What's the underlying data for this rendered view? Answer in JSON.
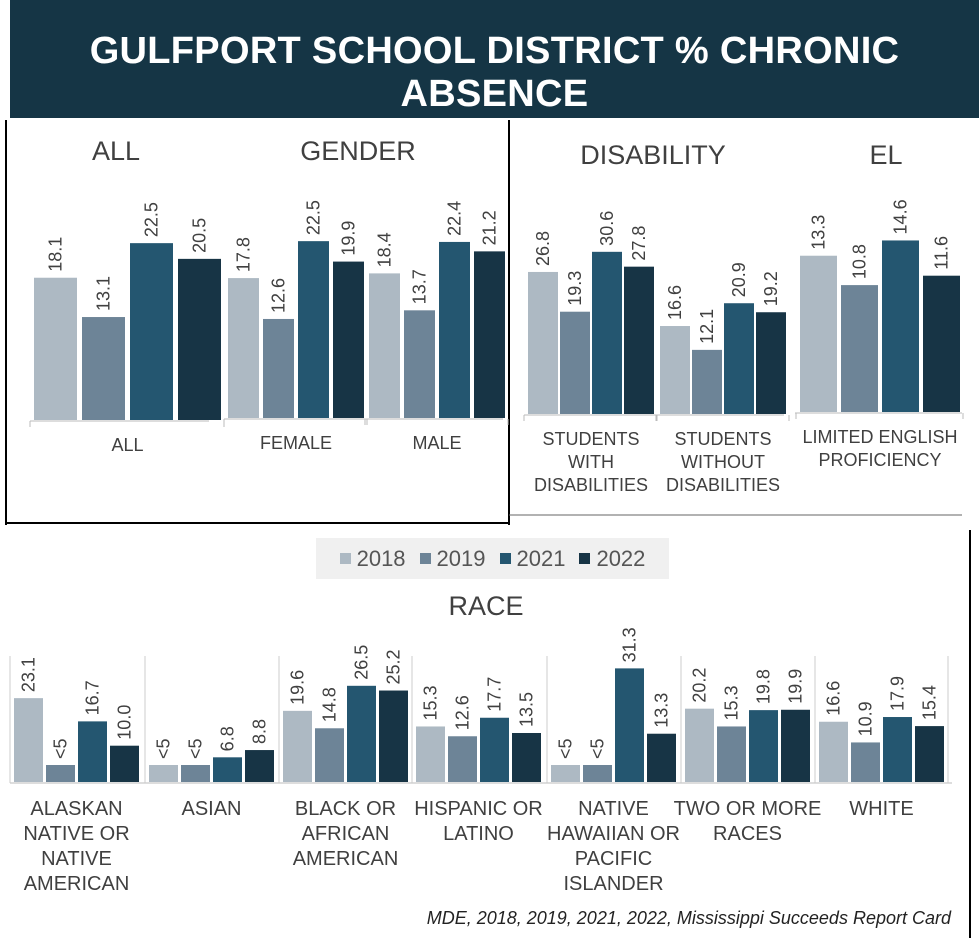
{
  "title": "GULFPORT SCHOOL DISTRICT % CHRONIC ABSENCE",
  "source": "MDE, 2018, 2019, 2021, 2022, Mississippi Succeeds Report Card",
  "legend": [
    "2018",
    "2019",
    "2021",
    "2022"
  ],
  "colors": [
    "#adb9c3",
    "#6d8497",
    "#245670",
    "#173445"
  ],
  "chart_data": [
    {
      "type": "bar",
      "title": "ALL",
      "categories": [
        "ALL"
      ],
      "series_names": [
        "2018",
        "2019",
        "2021",
        "2022"
      ],
      "values": [
        [
          18.1,
          13.1,
          22.5,
          20.5
        ]
      ],
      "labels": [
        [
          "18.1",
          "13.1",
          "22.5",
          "20.5"
        ]
      ]
    },
    {
      "type": "bar",
      "title": "GENDER",
      "categories": [
        "FEMALE",
        "MALE"
      ],
      "series_names": [
        "2018",
        "2019",
        "2021",
        "2022"
      ],
      "values": [
        [
          17.8,
          12.6,
          22.5,
          19.9
        ],
        [
          18.4,
          13.7,
          22.4,
          21.2
        ]
      ],
      "labels": [
        [
          "17.8",
          "12.6",
          "22.5",
          "19.9"
        ],
        [
          "18.4",
          "13.7",
          "22.4",
          "21.2"
        ]
      ]
    },
    {
      "type": "bar",
      "title": "DISABILITY",
      "categories": [
        "STUDENTS WITH DISABILITIES",
        "STUDENTS WITHOUT DISABILITIES"
      ],
      "series_names": [
        "2018",
        "2019",
        "2021",
        "2022"
      ],
      "values": [
        [
          26.8,
          19.3,
          30.6,
          27.8
        ],
        [
          16.6,
          12.1,
          20.9,
          19.2
        ]
      ],
      "labels": [
        [
          "26.8",
          "19.3",
          "30.6",
          "27.8"
        ],
        [
          "16.6",
          "12.1",
          "20.9",
          "19.2"
        ]
      ]
    },
    {
      "type": "bar",
      "title": "EL",
      "categories": [
        "LIMITED ENGLISH PROFICIENCY"
      ],
      "series_names": [
        "2018",
        "2019",
        "2021",
        "2022"
      ],
      "values": [
        [
          13.3,
          10.8,
          14.6,
          11.6
        ]
      ],
      "labels": [
        [
          "13.3",
          "10.8",
          "14.6",
          "11.6"
        ]
      ]
    },
    {
      "type": "bar",
      "title": "RACE",
      "categories": [
        "ALASKAN NATIVE OR NATIVE AMERICAN",
        "ASIAN",
        "BLACK OR AFRICAN AMERICAN",
        "HISPANIC OR LATINO",
        "NATIVE HAWAIIAN OR PACIFIC ISLANDER",
        "TWO OR MORE RACES",
        "WHITE"
      ],
      "series_names": [
        "2018",
        "2019",
        "2021",
        "2022"
      ],
      "values": [
        [
          23.1,
          null,
          16.7,
          10.0
        ],
        [
          null,
          null,
          6.8,
          8.8
        ],
        [
          19.6,
          14.8,
          26.5,
          25.2
        ],
        [
          15.3,
          12.6,
          17.7,
          13.5
        ],
        [
          null,
          null,
          31.3,
          13.3
        ],
        [
          20.2,
          15.3,
          19.8,
          19.9
        ],
        [
          16.6,
          10.9,
          17.9,
          15.4
        ]
      ],
      "labels": [
        [
          "23.1",
          "<5",
          "16.7",
          "10.0"
        ],
        [
          "<5",
          "<5",
          "6.8",
          "8.8"
        ],
        [
          "19.6",
          "14.8",
          "26.5",
          "25.2"
        ],
        [
          "15.3",
          "12.6",
          "17.7",
          "13.5"
        ],
        [
          "<5",
          "<5",
          "31.3",
          "13.3"
        ],
        [
          "20.2",
          "15.3",
          "19.8",
          "19.9"
        ],
        [
          "16.6",
          "10.9",
          "17.9",
          "15.4"
        ]
      ]
    }
  ]
}
